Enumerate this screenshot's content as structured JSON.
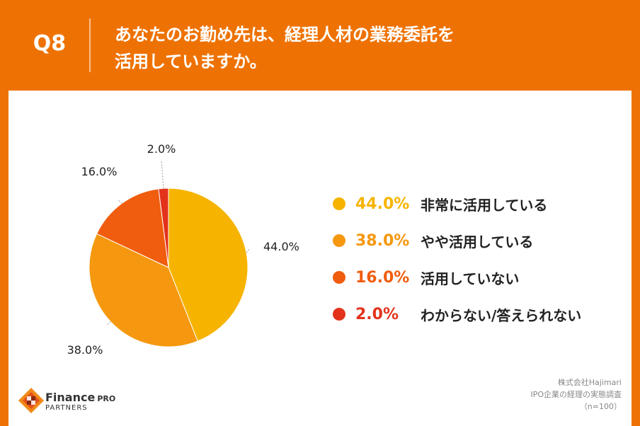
{
  "header": {
    "question_number": "Q8",
    "title_line1": "あなたのお勤め先は、経理人材の業務委託を",
    "title_line2": "活用していますか。"
  },
  "chart_data": {
    "type": "pie",
    "title": "あなたのお勤め先は、経理人材の業務委託を活用していますか。",
    "categories": [
      "非常に活用している",
      "やや活用している",
      "活用していない",
      "わからない/答えられない"
    ],
    "values": [
      44.0,
      38.0,
      16.0,
      2.0
    ],
    "labels": [
      "44.0%",
      "38.0%",
      "16.0%",
      "2.0%"
    ],
    "colors": [
      "#f6b400",
      "#f5980f",
      "#f05d0e",
      "#e3321b"
    ],
    "legend_position": "right"
  },
  "legend": {
    "items": [
      {
        "percent": "44.0%",
        "label": "非常に活用している",
        "color": "#f6b400"
      },
      {
        "percent": "38.0%",
        "label": "やや活用している",
        "color": "#f5980f"
      },
      {
        "percent": "16.0%",
        "label": "活用していない",
        "color": "#f05d0e"
      },
      {
        "percent": "2.0%",
        "label": "わからない/答えられない",
        "color": "#e3321b"
      }
    ]
  },
  "logo": {
    "name": "Finance",
    "name_suffix": "PRO",
    "sub": "PARTNERS"
  },
  "source": {
    "company": "株式会社Hajimari",
    "survey": "IPO企業の経理の実態調査",
    "sample": "（n=100）"
  }
}
